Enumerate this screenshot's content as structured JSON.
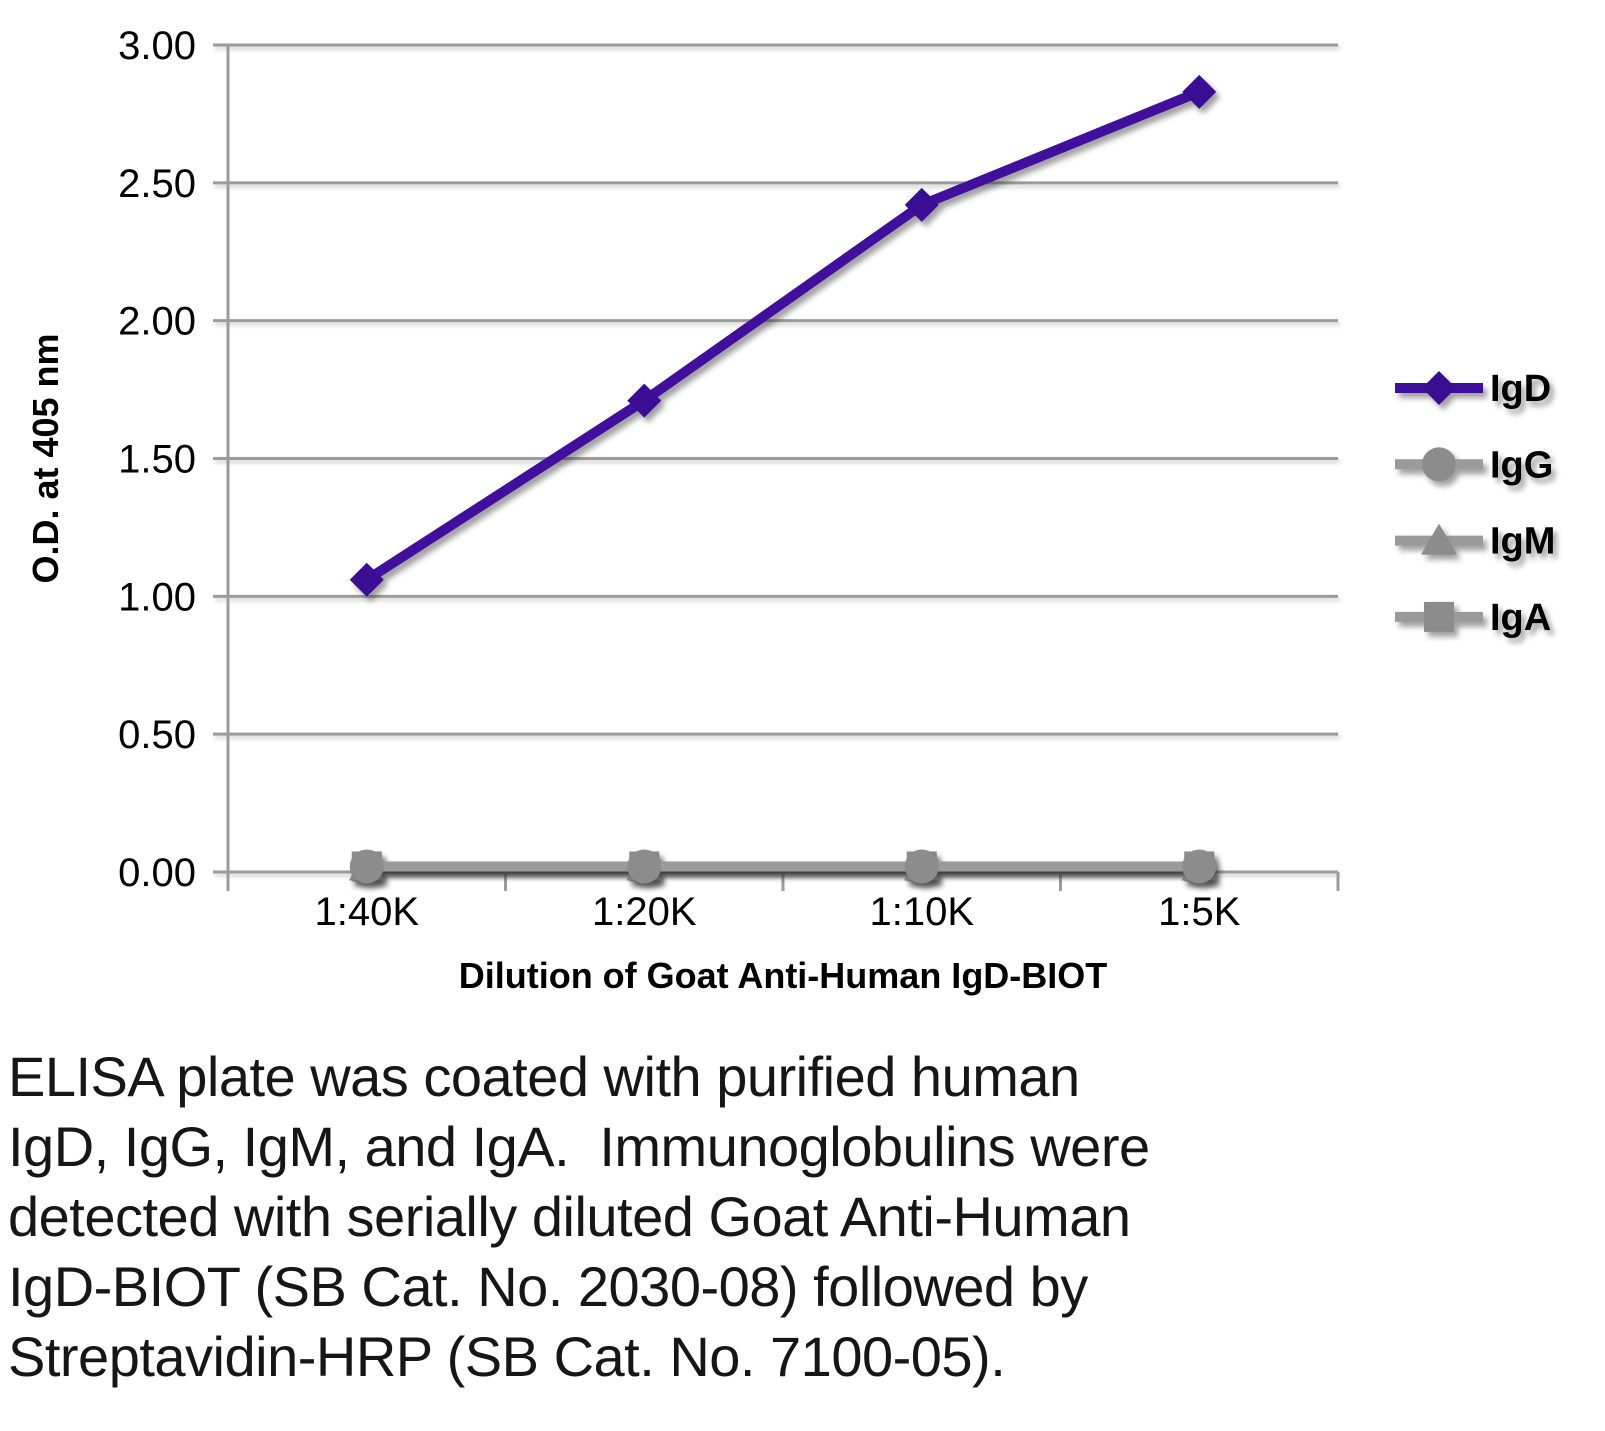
{
  "chart_data": {
    "type": "line",
    "title": "",
    "xlabel": "Dilution of Goat Anti-Human IgD-BIOT",
    "ylabel": "O.D. at 405 nm",
    "categories": [
      "1:40K",
      "1:20K",
      "1:10K",
      "1:5K"
    ],
    "ylim": [
      0,
      3
    ],
    "ytick_step": 0.5,
    "ytick_labels": [
      "0.00",
      "0.50",
      "1.00",
      "1.50",
      "2.00",
      "2.50",
      "3.00"
    ],
    "grid": true,
    "legend_position": "right",
    "series": [
      {
        "name": "IgD",
        "marker": "diamond",
        "line_color": "#40109d",
        "marker_color": "#3a0d92",
        "values": [
          1.06,
          1.71,
          2.42,
          2.83
        ]
      },
      {
        "name": "IgG",
        "marker": "circle",
        "line_color": "#9a9a9a",
        "marker_color": "#8c8c8c",
        "values": [
          0.02,
          0.02,
          0.02,
          0.02
        ]
      },
      {
        "name": "IgM",
        "marker": "triangle",
        "line_color": "#9a9a9a",
        "marker_color": "#8c8c8c",
        "values": [
          0.02,
          0.02,
          0.02,
          0.02
        ]
      },
      {
        "name": "IgA",
        "marker": "square",
        "line_color": "#9a9a9a",
        "marker_color": "#8c8c8c",
        "values": [
          0.02,
          0.02,
          0.02,
          0.02
        ]
      }
    ]
  },
  "caption": {
    "lines": [
      "ELISA plate was coated with purified human",
      "IgD, IgG, IgM, and IgA.  Immunoglobulins were",
      "detected with serially diluted Goat Anti-Human",
      "IgD-BIOT (SB Cat. No. 2030-08) followed by",
      "Streptavidin-HRP (SB Cat. No. 7100-05)."
    ]
  },
  "colors": {
    "grid": "#9b9b9b",
    "accent_purple": "#40109d",
    "series_gray": "#9a9a9a",
    "text": "#000000",
    "caption_text": "#161616"
  }
}
